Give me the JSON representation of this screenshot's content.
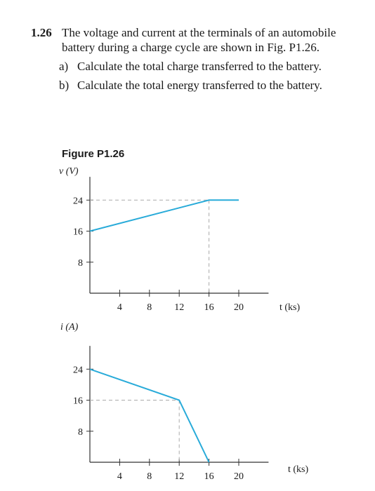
{
  "problem": {
    "number": "1.26",
    "statement": "The voltage and current at the terminals of an automobile battery during a charge cycle are shown in Fig. P1.26.",
    "parts": [
      {
        "label": "a)",
        "text": "Calculate the total charge transferred to the battery."
      },
      {
        "label": "b)",
        "text": "Calculate the total energy transferred to the battery."
      }
    ]
  },
  "figure": {
    "title": "Figure P1.26"
  },
  "chart_data": [
    {
      "type": "line",
      "ylabel": "v (V)",
      "xlabel": "t (ks)",
      "xticks": [
        4,
        8,
        12,
        16,
        20
      ],
      "yticks": [
        8,
        16,
        24
      ],
      "xlim": [
        0,
        24
      ],
      "ylim": [
        0,
        30
      ],
      "series": [
        {
          "x": [
            0,
            16,
            20
          ],
          "y": [
            16,
            24,
            24
          ]
        }
      ]
    },
    {
      "type": "line",
      "ylabel": "i (A)",
      "xlabel": "t (ks)",
      "xticks": [
        4,
        8,
        12,
        16,
        20
      ],
      "yticks": [
        8,
        16,
        24
      ],
      "xlim": [
        0,
        24
      ],
      "ylim": [
        0,
        30
      ],
      "series": [
        {
          "x": [
            0,
            12,
            16
          ],
          "y": [
            24,
            16,
            0
          ]
        }
      ]
    }
  ]
}
